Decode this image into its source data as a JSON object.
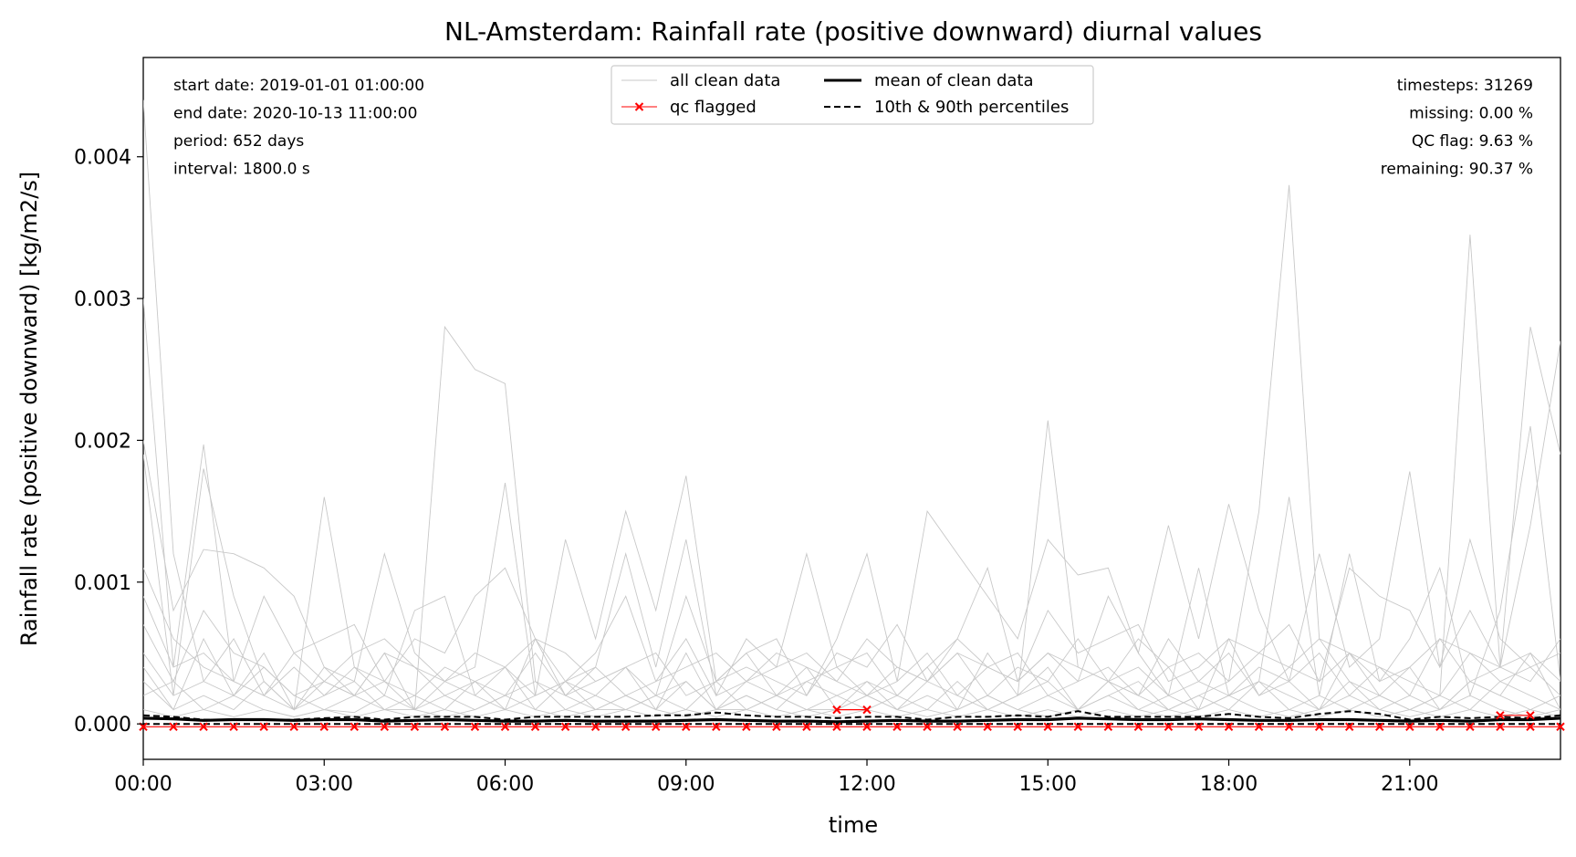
{
  "chart_data": {
    "type": "line",
    "title": "NL-Amsterdam: Rainfall rate (positive downward) diurnal values",
    "xlabel": "time",
    "ylabel": "Rainfall rate (positive downward) [kg/m2/s]",
    "xlim_hours": [
      0,
      23.5
    ],
    "ylim": [
      -0.00025,
      0.0047
    ],
    "x_ticks": [
      {
        "hour": 0,
        "label": "00:00"
      },
      {
        "hour": 3,
        "label": "03:00"
      },
      {
        "hour": 6,
        "label": "06:00"
      },
      {
        "hour": 9,
        "label": "09:00"
      },
      {
        "hour": 12,
        "label": "12:00"
      },
      {
        "hour": 15,
        "label": "15:00"
      },
      {
        "hour": 18,
        "label": "18:00"
      },
      {
        "hour": 21,
        "label": "21:00"
      }
    ],
    "y_ticks": [
      {
        "value": 0.0,
        "label": "0.000"
      },
      {
        "value": 0.001,
        "label": "0.001"
      },
      {
        "value": 0.002,
        "label": "0.002"
      },
      {
        "value": 0.003,
        "label": "0.003"
      },
      {
        "value": 0.004,
        "label": "0.004"
      }
    ],
    "grid": false,
    "legend": {
      "placement": "top-center",
      "entries": [
        {
          "label": "all clean data",
          "style": "thin-gray-line"
        },
        {
          "label": "qc flagged",
          "style": "red-line-x-marker"
        },
        {
          "label": "mean of clean data",
          "style": "solid-black-line"
        },
        {
          "label": "10th & 90th percentiles",
          "style": "dashed-black-line"
        }
      ]
    },
    "info_left": [
      "start date: 2019-01-01 01:00:00",
      "end date: 2020-10-13 11:00:00",
      "period: 652 days",
      "interval: 1800.0 s"
    ],
    "info_right": [
      "timesteps: 31269",
      "missing: 0.00 %",
      "QC flag: 9.63 %",
      "remaining: 90.37 %"
    ],
    "colors": {
      "clean": "#c8c8c8",
      "qc": "#ff0000",
      "mean": "#000000",
      "percentile": "#000000"
    },
    "x_hours": [
      0,
      0.5,
      1,
      1.5,
      2,
      2.5,
      3,
      3.5,
      4,
      4.5,
      5,
      5.5,
      6,
      6.5,
      7,
      7.5,
      8,
      8.5,
      9,
      9.5,
      10,
      10.5,
      11,
      11.5,
      12,
      12.5,
      13,
      13.5,
      14,
      14.5,
      15,
      15.5,
      16,
      16.5,
      17,
      17.5,
      18,
      18.5,
      19,
      19.5,
      20,
      20.5,
      21,
      21.5,
      22,
      22.5,
      23,
      23.5
    ],
    "series": [
      {
        "name": "mean of clean data",
        "values": [
          4e-05,
          3.5e-05,
          2.5e-05,
          3e-05,
          3e-05,
          2.5e-05,
          3e-05,
          3e-05,
          2e-05,
          2.5e-05,
          3e-05,
          2.5e-05,
          2e-05,
          2e-05,
          2.5e-05,
          2e-05,
          2e-05,
          2e-05,
          2.5e-05,
          3e-05,
          2.5e-05,
          2e-05,
          2e-05,
          1.5e-05,
          2e-05,
          2.5e-05,
          2e-05,
          2e-05,
          2.5e-05,
          3e-05,
          3e-05,
          4e-05,
          3.5e-05,
          3e-05,
          3e-05,
          3.5e-05,
          3e-05,
          2.5e-05,
          2.5e-05,
          3e-05,
          3e-05,
          2.5e-05,
          2e-05,
          2.5e-05,
          2e-05,
          3e-05,
          3e-05,
          4e-05
        ]
      },
      {
        "name": "10th percentile",
        "values": [
          0,
          0,
          0,
          0,
          0,
          0,
          0,
          0,
          0,
          0,
          0,
          0,
          0,
          0,
          0,
          0,
          0,
          0,
          0,
          0,
          0,
          0,
          0,
          0,
          0,
          0,
          0,
          0,
          0,
          0,
          0,
          0,
          0,
          0,
          0,
          0,
          0,
          0,
          0,
          0,
          0,
          0,
          0,
          0,
          0,
          0,
          0,
          0
        ]
      },
      {
        "name": "90th percentile",
        "values": [
          6e-05,
          5e-05,
          3e-05,
          3e-05,
          3e-05,
          3e-05,
          4e-05,
          5e-05,
          3e-05,
          5e-05,
          5e-05,
          5e-05,
          3e-05,
          5e-05,
          5e-05,
          5e-05,
          5e-05,
          6e-05,
          6e-05,
          8e-05,
          6e-05,
          5e-05,
          5e-05,
          4e-05,
          5e-05,
          5e-05,
          3e-05,
          5e-05,
          5e-05,
          6e-05,
          5e-05,
          9e-05,
          5e-05,
          5e-05,
          5e-05,
          5e-05,
          7e-05,
          5e-05,
          4e-05,
          7e-05,
          9e-05,
          7e-05,
          3e-05,
          5e-05,
          4e-05,
          5e-05,
          4e-05,
          6e-05
        ]
      }
    ],
    "qc_flagged": [
      {
        "hour": 0,
        "value": -2e-05
      },
      {
        "hour": 0.5,
        "value": -2e-05
      },
      {
        "hour": 1,
        "value": -2e-05
      },
      {
        "hour": 1.5,
        "value": -2e-05
      },
      {
        "hour": 2,
        "value": -2e-05
      },
      {
        "hour": 2.5,
        "value": -2e-05
      },
      {
        "hour": 3,
        "value": -2e-05
      },
      {
        "hour": 3.5,
        "value": -2e-05
      },
      {
        "hour": 4,
        "value": -2e-05
      },
      {
        "hour": 4.5,
        "value": -2e-05
      },
      {
        "hour": 5,
        "value": -2e-05
      },
      {
        "hour": 5.5,
        "value": -2e-05
      },
      {
        "hour": 6,
        "value": -2e-05
      },
      {
        "hour": 6.5,
        "value": -2e-05
      },
      {
        "hour": 7,
        "value": -2e-05
      },
      {
        "hour": 7.5,
        "value": -2e-05
      },
      {
        "hour": 8,
        "value": -2e-05
      },
      {
        "hour": 8.5,
        "value": -2e-05
      },
      {
        "hour": 9,
        "value": -2e-05
      },
      {
        "hour": 9.5,
        "value": -2e-05
      },
      {
        "hour": 10,
        "value": -2e-05
      },
      {
        "hour": 10.5,
        "value": -2e-05
      },
      {
        "hour": 11,
        "value": -2e-05
      },
      {
        "hour": 11.5,
        "value": -2e-05
      },
      {
        "hour": 12,
        "value": -2e-05
      },
      {
        "hour": 12.5,
        "value": -2e-05
      },
      {
        "hour": 13,
        "value": -2e-05
      },
      {
        "hour": 13.5,
        "value": -2e-05
      },
      {
        "hour": 14,
        "value": -2e-05
      },
      {
        "hour": 14.5,
        "value": -2e-05
      },
      {
        "hour": 15,
        "value": -2e-05
      },
      {
        "hour": 15.5,
        "value": -2e-05
      },
      {
        "hour": 16,
        "value": -2e-05
      },
      {
        "hour": 16.5,
        "value": -2e-05
      },
      {
        "hour": 17,
        "value": -2e-05
      },
      {
        "hour": 17.5,
        "value": -2e-05
      },
      {
        "hour": 18,
        "value": -2e-05
      },
      {
        "hour": 18.5,
        "value": -2e-05
      },
      {
        "hour": 19,
        "value": -2e-05
      },
      {
        "hour": 19.5,
        "value": -2e-05
      },
      {
        "hour": 20,
        "value": -2e-05
      },
      {
        "hour": 20.5,
        "value": -2e-05
      },
      {
        "hour": 21,
        "value": -2e-05
      },
      {
        "hour": 21.5,
        "value": -2e-05
      },
      {
        "hour": 22,
        "value": -2e-05
      },
      {
        "hour": 22.5,
        "value": -2e-05
      },
      {
        "hour": 23,
        "value": -2e-05
      },
      {
        "hour": 23.5,
        "value": -2e-05
      },
      {
        "hour": 11.5,
        "value": 0.0001
      },
      {
        "hour": 12,
        "value": 0.0001
      },
      {
        "hour": 22.5,
        "value": 6e-05
      },
      {
        "hour": 23,
        "value": 6e-05
      }
    ],
    "clean_data_days": [
      [
        0.0044,
        0.0012,
        0.0003,
        0.0002,
        0.0001,
        5e-05,
        0.0001,
        8e-05,
        0.0002,
        0.0001,
        5e-05,
        0.0001,
        0.0002,
        0.0001,
        5e-05,
        0.0001,
        0.0002,
        0.0001,
        5e-05,
        0.0001,
        0.0002,
        0.0001,
        5e-05,
        0.0001,
        0.0002,
        0.0001,
        5e-05,
        0.0001,
        0.0002,
        0.0001,
        5e-05,
        0.0001,
        0.0002,
        0.0001,
        5e-05,
        0.0001,
        0.0002,
        0.0001,
        5e-05,
        0.0001,
        0.0002,
        0.0001,
        5e-05,
        0.0001,
        0.0002,
        0.0001,
        5e-05,
        0.0001
      ],
      [
        0.003,
        0.0004,
        0.00197,
        0.0003,
        0.0002,
        0.0001,
        0.0003,
        0.0002,
        0.0001,
        0.0001,
        0.0028,
        0.0025,
        0.0024,
        0.0003,
        0.0002,
        0.0001,
        0.0001,
        0.0002,
        0.0003,
        0.0001,
        0.0001,
        0.0002,
        0.0001,
        0.0001,
        0.0002,
        0.0001,
        0.0003,
        0.0002,
        0.0001,
        0.0002,
        0.00214,
        0.0004,
        0.0003,
        0.0002,
        0.0001,
        0.0002,
        0.0003,
        0.0015,
        0.0038,
        0.0006,
        0.0003,
        0.0002,
        0.0001,
        0.0002,
        0.00345,
        0.0004,
        0.0028,
        0.0019
      ],
      [
        0.002,
        0.0008,
        0.00123,
        0.0012,
        0.0011,
        0.0009,
        0.0004,
        0.0003,
        0.0012,
        0.0005,
        0.0003,
        0.0004,
        0.0017,
        0.0002,
        0.0013,
        0.0006,
        0.0015,
        0.0008,
        0.00175,
        0.0003,
        0.0004,
        0.0003,
        0.0002,
        0.0006,
        0.0012,
        0.0003,
        0.0015,
        0.0012,
        0.0009,
        0.0006,
        0.0013,
        0.00105,
        0.0011,
        0.0005,
        0.0014,
        0.0006,
        0.00155,
        0.0008,
        0.0003,
        0.0012,
        0.0004,
        0.0006,
        0.00178,
        0.0004,
        0.0008,
        0.0004,
        0.0014,
        0.0027
      ],
      [
        0.0019,
        0.0002,
        0.0018,
        0.0009,
        0.0003,
        0.0001,
        0.0016,
        0.0004,
        0.0002,
        0.0008,
        0.0009,
        0.0002,
        0.0001,
        0.0006,
        0.0002,
        0.0004,
        0.0012,
        0.0004,
        0.0013,
        0.0002,
        0.0006,
        0.0004,
        0.0012,
        0.0004,
        0.0005,
        0.0002,
        0.0004,
        0.0006,
        0.0011,
        0.0003,
        0.0005,
        0.0003,
        0.0009,
        0.0005,
        0.0002,
        0.0011,
        0.0002,
        0.0003,
        0.0016,
        0.0002,
        0.0012,
        0.0003,
        0.0006,
        0.0011,
        0.0002,
        0.0008,
        0.0021,
        0.0003
      ],
      [
        0.0011,
        0.0006,
        0.0004,
        0.0003,
        0.0002,
        0.0005,
        0.0006,
        0.0007,
        0.0003,
        0.0006,
        0.0005,
        0.0009,
        0.0011,
        0.0006,
        0.0005,
        0.0003,
        0.0004,
        0.0002,
        0.0009,
        0.0003,
        0.0005,
        0.0006,
        0.0002,
        0.0005,
        0.0004,
        0.0007,
        0.0003,
        0.0006,
        0.0004,
        0.0003,
        0.0008,
        0.0005,
        0.0006,
        0.0007,
        0.0003,
        0.0004,
        0.0006,
        0.0005,
        0.0007,
        0.0003,
        0.0011,
        0.0009,
        0.0008,
        0.0004,
        0.0013,
        0.0006,
        0.0004,
        0.0005
      ],
      [
        0.0007,
        0.0003,
        0.0008,
        0.0005,
        0.0004,
        0.0002,
        0.0003,
        0.0002,
        0.0005,
        0.0004,
        0.0002,
        0.0003,
        0.0004,
        0.0002,
        0.0003,
        0.0004,
        0.0002,
        0.0003,
        0.0006,
        0.0002,
        0.0003,
        0.0004,
        0.0005,
        0.0003,
        0.0002,
        0.0004,
        0.0003,
        0.0005,
        0.0002,
        0.0004,
        0.0003,
        0.0006,
        0.0003,
        0.0004,
        0.0002,
        0.0003,
        0.0005,
        0.0002,
        0.0004,
        0.0003,
        0.0005,
        0.0004,
        0.0002,
        0.0006,
        0.0003,
        0.0004,
        0.0005,
        0.0003
      ],
      [
        0.0005,
        0.0002,
        0.0003,
        0.0006,
        0.0002,
        0.0004,
        0.0002,
        0.0004,
        0.0003,
        0.0002,
        0.0004,
        0.0003,
        0.0002,
        0.0005,
        0.0002,
        0.0003,
        0.0004,
        0.0005,
        0.0002,
        0.0003,
        0.0005,
        0.0002,
        0.0003,
        0.0004,
        0.0002,
        0.0003,
        0.0005,
        0.0002,
        0.0004,
        0.0005,
        0.0002,
        0.0003,
        0.0004,
        0.0002,
        0.0006,
        0.0003,
        0.0002,
        0.0004,
        0.0003,
        0.0005,
        0.0002,
        0.0004,
        0.0003,
        0.0002,
        0.0005,
        0.0003,
        0.0004,
        0.0002
      ],
      [
        0.0003,
        0.0001,
        0.0002,
        0.0001,
        0.0003,
        0.0001,
        0.0002,
        0.0003,
        0.0001,
        0.0002,
        0.0001,
        0.0003,
        0.0001,
        0.0002,
        0.0003,
        0.0001,
        0.0002,
        0.0001,
        0.0003,
        0.0001,
        0.0002,
        0.0001,
        0.0003,
        0.0002,
        0.0001,
        0.0002,
        0.0001,
        0.0003,
        0.0001,
        0.0002,
        0.0003,
        0.0001,
        0.0002,
        0.0003,
        0.0001,
        0.0002,
        0.0001,
        0.0003,
        0.0002,
        0.0001,
        0.0003,
        0.0001,
        0.0002,
        0.0001,
        0.0003,
        0.0002,
        0.0001,
        0.0002
      ],
      [
        0.0002,
        0.0003,
        0.0001,
        0.0002,
        0.0004,
        0.0002,
        0.0001,
        0.0002,
        0.0003,
        0.0001,
        0.0002,
        0.0001,
        0.0002,
        0.0003,
        0.0001,
        0.0002,
        0.0001,
        0.0002,
        0.0001,
        0.0003,
        0.0001,
        0.0002,
        0.0001,
        0.0002,
        0.0003,
        0.0001,
        0.0002,
        0.0001,
        0.0002,
        0.0001,
        0.0002,
        0.0001,
        0.0003,
        0.0001,
        0.0002,
        0.0001,
        0.0002,
        0.0003,
        0.0001,
        0.0002,
        0.0001,
        0.0002,
        0.0001,
        0.0002,
        0.0001,
        0.0003,
        0.0002,
        0.0001
      ],
      [
        0.0009,
        0.0004,
        0.0005,
        0.0003,
        0.0009,
        0.0005,
        0.0003,
        0.0005,
        0.0006,
        0.0004,
        0.0003,
        0.0005,
        0.0004,
        0.0006,
        0.0003,
        0.0005,
        0.0009,
        0.0003,
        0.0004,
        0.0005,
        0.0003,
        0.0005,
        0.0004,
        0.0003,
        0.0006,
        0.0004,
        0.0003,
        0.0005,
        0.0004,
        0.0003,
        0.0005,
        0.0004,
        0.0003,
        0.0006,
        0.0004,
        0.0005,
        0.0003,
        0.0005,
        0.0004,
        0.0006,
        0.0005,
        0.0003,
        0.0004,
        0.0006,
        0.0005,
        0.0004,
        0.0003,
        0.0006
      ],
      [
        0.0001,
        5e-05,
        0.0001,
        5e-05,
        0.0001,
        5e-05,
        0.0001,
        5e-05,
        0.0001,
        5e-05,
        0.0001,
        5e-05,
        0.0001,
        5e-05,
        0.0001,
        5e-05,
        0.0001,
        5e-05,
        0.0001,
        5e-05,
        0.0001,
        5e-05,
        0.0001,
        5e-05,
        0.0001,
        5e-05,
        0.0001,
        5e-05,
        0.0001,
        5e-05,
        0.0001,
        5e-05,
        0.0001,
        5e-05,
        0.0001,
        5e-05,
        0.0001,
        5e-05,
        0.0001,
        5e-05,
        0.0001,
        5e-05,
        0.0001,
        5e-05,
        0.0001,
        5e-05,
        0.0001,
        5e-05
      ],
      [
        0.0004,
        0.0001,
        0.0006,
        0.0002,
        0.0005,
        0.0001,
        0.0004,
        0.0002,
        0.0005,
        0.0001,
        0.0003,
        0.0002,
        0.0004,
        0.0001,
        0.0003,
        0.0002,
        0.0004,
        0.0001,
        0.0005,
        0.0001,
        0.0003,
        0.0002,
        0.0004,
        0.0001,
        0.0003,
        0.0002,
        0.0004,
        0.0001,
        0.0005,
        0.0002,
        0.0004,
        0.0001,
        0.0003,
        0.0002,
        0.0004,
        0.0001,
        0.0006,
        0.0002,
        0.0003,
        0.0001,
        0.0005,
        0.0002,
        0.0004,
        0.0001,
        0.0003,
        0.0002,
        0.0005,
        0.0001
      ]
    ]
  }
}
